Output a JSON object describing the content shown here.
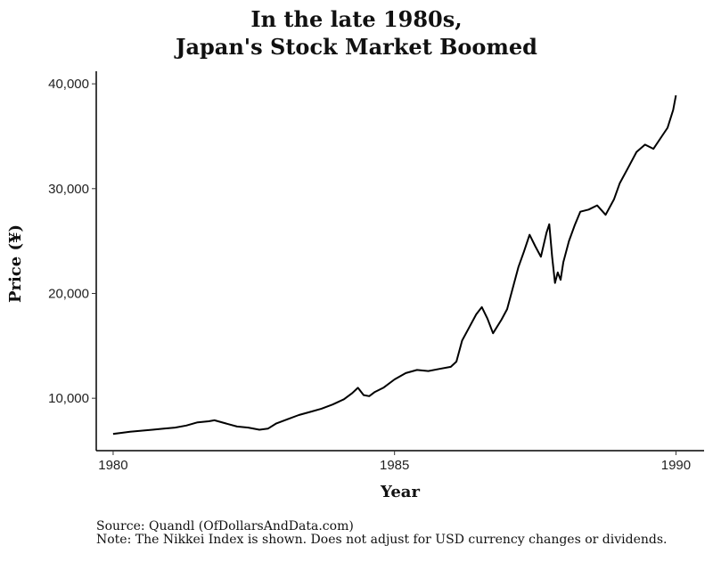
{
  "chart_data": {
    "type": "line",
    "title": [
      "In the late 1980s,",
      "Japan's Stock Market Boomed"
    ],
    "xlabel": "Year",
    "ylabel": "Price (¥)",
    "x_ticks": [
      1980,
      1985,
      1990
    ],
    "y_ticks": [
      10000,
      20000,
      30000,
      40000
    ],
    "y_tick_labels": [
      "10,000",
      "20,000",
      "30,000",
      "40,000"
    ],
    "xlim": [
      1979.7,
      1990.5
    ],
    "ylim": [
      5000,
      41200
    ],
    "grid": false,
    "line_color": "#000000",
    "series": [
      {
        "x": [
          1980.0,
          1980.15,
          1980.3,
          1980.5,
          1980.7,
          1980.9,
          1981.1,
          1981.3,
          1981.5,
          1981.7,
          1981.8,
          1982.0,
          1982.2,
          1982.4,
          1982.6,
          1982.75,
          1982.9,
          1983.1,
          1983.3,
          1983.5,
          1983.7,
          1983.9,
          1984.1,
          1984.25,
          1984.35,
          1984.45,
          1984.55,
          1984.65,
          1984.8,
          1985.0,
          1985.2,
          1985.4,
          1985.6,
          1985.8,
          1986.0,
          1986.1,
          1986.2,
          1986.3,
          1986.45,
          1986.55,
          1986.65,
          1986.75,
          1986.9,
          1987.0,
          1987.1,
          1987.2,
          1987.3,
          1987.4,
          1987.5,
          1987.6,
          1987.7,
          1987.75,
          1987.8,
          1987.85,
          1987.9,
          1987.95,
          1988.0,
          1988.1,
          1988.2,
          1988.3,
          1988.45,
          1988.6,
          1988.75,
          1988.9,
          1989.0,
          1989.15,
          1989.3,
          1989.45,
          1989.6,
          1989.75,
          1989.85,
          1989.95,
          1990.0
        ],
        "y": [
          6600,
          6700,
          6800,
          6900,
          7000,
          7100,
          7200,
          7400,
          7700,
          7800,
          7900,
          7600,
          7300,
          7200,
          7000,
          7100,
          7600,
          8000,
          8400,
          8700,
          9000,
          9400,
          9900,
          10500,
          11000,
          10300,
          10200,
          10600,
          11000,
          11800,
          12400,
          12700,
          12600,
          12800,
          13000,
          13500,
          15500,
          16500,
          18000,
          18700,
          17600,
          16200,
          17500,
          18500,
          20500,
          22500,
          24000,
          25600,
          24500,
          23500,
          25800,
          26600,
          23500,
          21000,
          22000,
          21300,
          23000,
          25000,
          26500,
          27800,
          28000,
          28400,
          27500,
          29000,
          30500,
          32000,
          33500,
          34200,
          33800,
          35000,
          35800,
          37500,
          38900
        ]
      }
    ],
    "source": "Source:  Quandl (OfDollarsAndData.com)",
    "note": "Note: The Nikkei Index is shown. Does not adjust for USD currency changes or dividends."
  }
}
